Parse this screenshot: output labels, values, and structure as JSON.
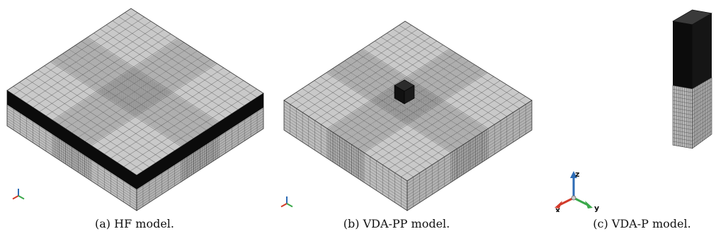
{
  "figure": {
    "panels": [
      {
        "id": "a",
        "caption": "(a) HF model."
      },
      {
        "id": "b",
        "caption": "(b) VDA-PP model."
      },
      {
        "id": "c",
        "caption": "(c) VDA-P model.",
        "axes": {
          "z": "z",
          "x": "x",
          "y": "y"
        }
      }
    ],
    "colors": {
      "mesh_face": "#c9c9c9",
      "mesh_line": "#3a3a3a",
      "dark_band": "#0b0b0b",
      "axis_z": "#2d6bb5",
      "axis_x": "#d23a2a",
      "axis_y": "#3aa84a"
    }
  }
}
